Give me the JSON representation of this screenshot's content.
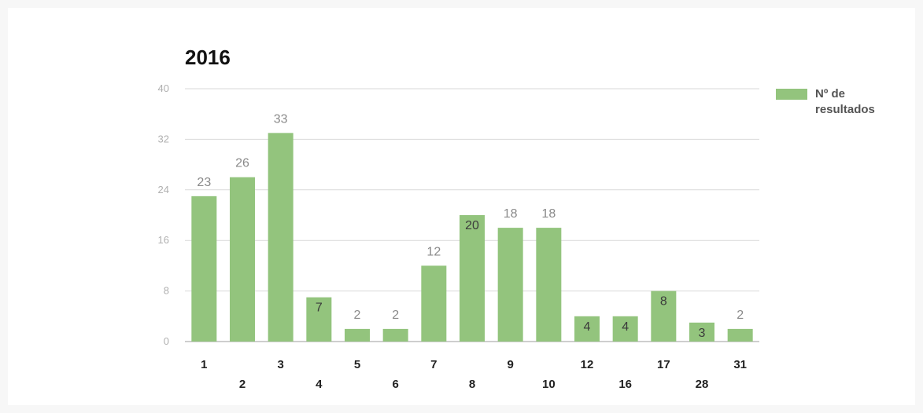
{
  "chart_data": {
    "type": "bar",
    "title": "2016",
    "xlabel": "",
    "ylabel": "",
    "categories": [
      "1",
      "2",
      "3",
      "4",
      "5",
      "6",
      "7",
      "8",
      "9",
      "10",
      "12",
      "16",
      "17",
      "28",
      "31"
    ],
    "series": [
      {
        "name": "Nº de resultados",
        "values": [
          23,
          26,
          33,
          7,
          2,
          2,
          12,
          20,
          18,
          18,
          4,
          4,
          8,
          3,
          2
        ],
        "color": "#93c47d"
      }
    ],
    "ylim": [
      0,
      40
    ],
    "yticks": [
      "0",
      "8",
      "16",
      "24",
      "32",
      "40"
    ],
    "grid": true,
    "legend_position": "right-top",
    "legend_label_lines": [
      "Nº de",
      "resultados"
    ]
  }
}
